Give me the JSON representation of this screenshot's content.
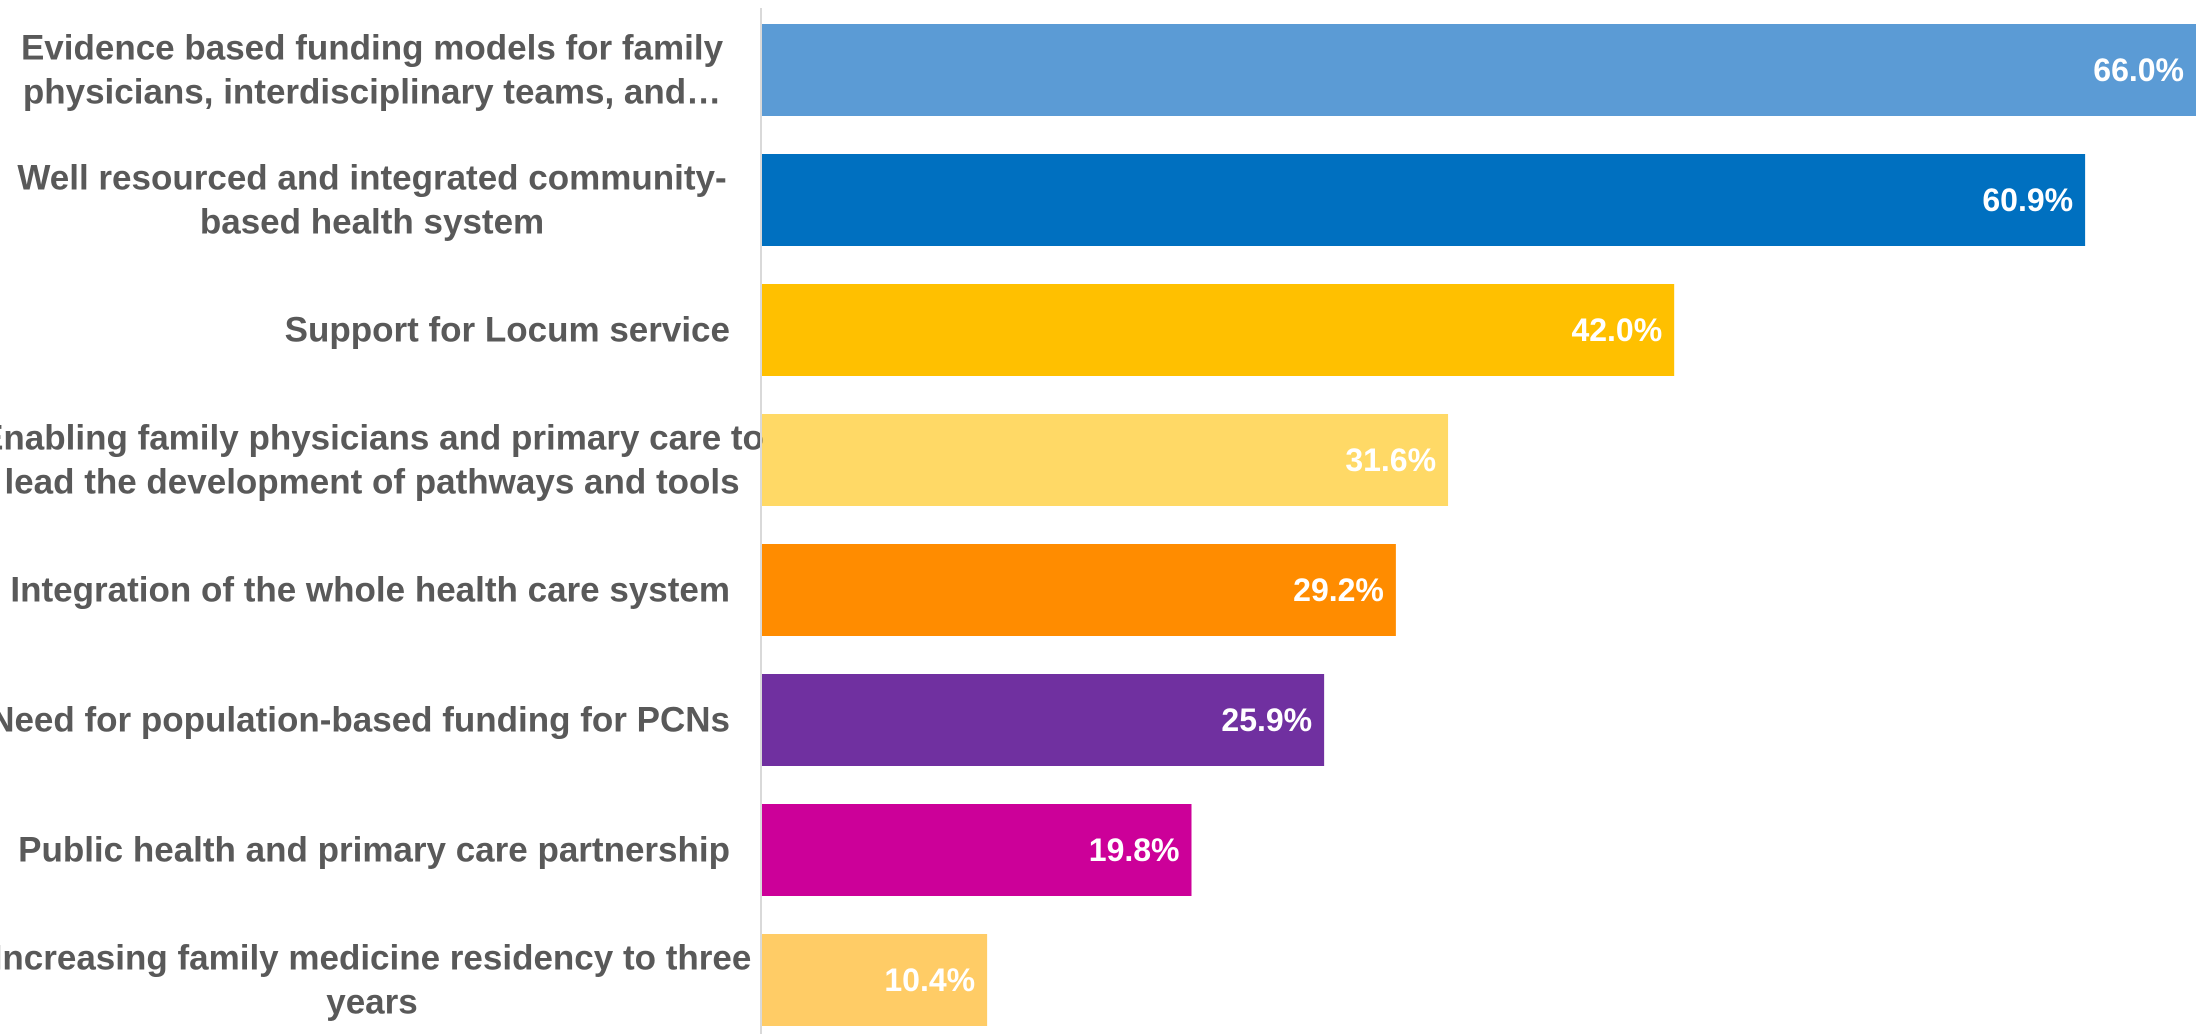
{
  "chart_data": {
    "type": "bar",
    "orientation": "horizontal",
    "categories": [
      [
        "Evidence based funding models for family",
        "physicians, interdisciplinary teams, and…"
      ],
      [
        "Well resourced and integrated community-",
        "based health system"
      ],
      [
        "Support for Locum service"
      ],
      [
        "Enabling family physicians and primary care to",
        "lead the development of pathways and tools"
      ],
      [
        "Integration of the whole health care system"
      ],
      [
        "Need for population-based funding for PCNs"
      ],
      [
        "Public health and primary care partnership"
      ],
      [
        "Increasing family medicine residency to three",
        "years"
      ]
    ],
    "values": [
      66.0,
      60.9,
      42.0,
      31.6,
      29.2,
      25.9,
      19.8,
      10.4
    ],
    "value_labels": [
      "66.0%",
      "60.9%",
      "42.0%",
      "31.6%",
      "29.2%",
      "25.9%",
      "19.8%",
      "10.4%"
    ],
    "colors": [
      "#5B9BD5",
      "#0070C0",
      "#FFC000",
      "#FFD966",
      "#FF8C00",
      "#7030A0",
      "#CC0099",
      "#FFCC66"
    ],
    "xlim": [
      0,
      66.0
    ],
    "grid": false,
    "legend": "none",
    "title": "",
    "xlabel": "",
    "ylabel": ""
  }
}
